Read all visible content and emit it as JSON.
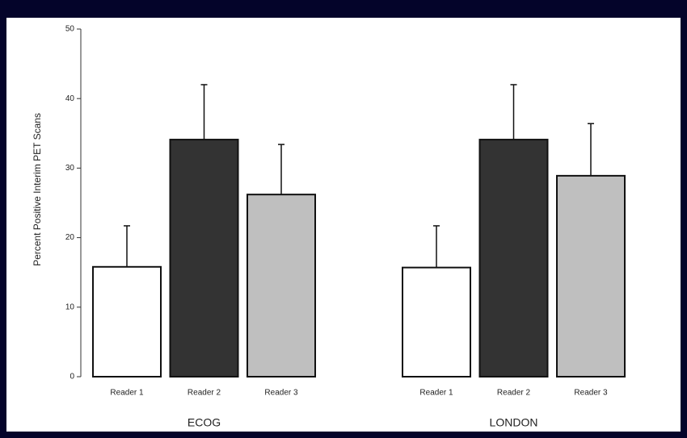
{
  "chart_data": {
    "type": "bar",
    "y_label": "Percent Positive Interim PET Scans",
    "categories": [
      "ECOG",
      "LONDON"
    ],
    "series": [
      {
        "name": "Reader 1",
        "color": "#ffffff",
        "values": [
          15.8,
          15.7
        ],
        "errors": [
          5.9,
          6.0
        ]
      },
      {
        "name": "Reader 2",
        "color": "#333333",
        "values": [
          34.1,
          34.1
        ],
        "errors": [
          7.9,
          7.9
        ]
      },
      {
        "name": "Reader 3",
        "color": "#bfbfbf",
        "values": [
          26.2,
          28.9
        ],
        "errors": [
          7.2,
          7.5
        ]
      }
    ],
    "ylim": [
      0,
      50
    ],
    "yticks": [
      0,
      10,
      20,
      30,
      40,
      50
    ]
  }
}
